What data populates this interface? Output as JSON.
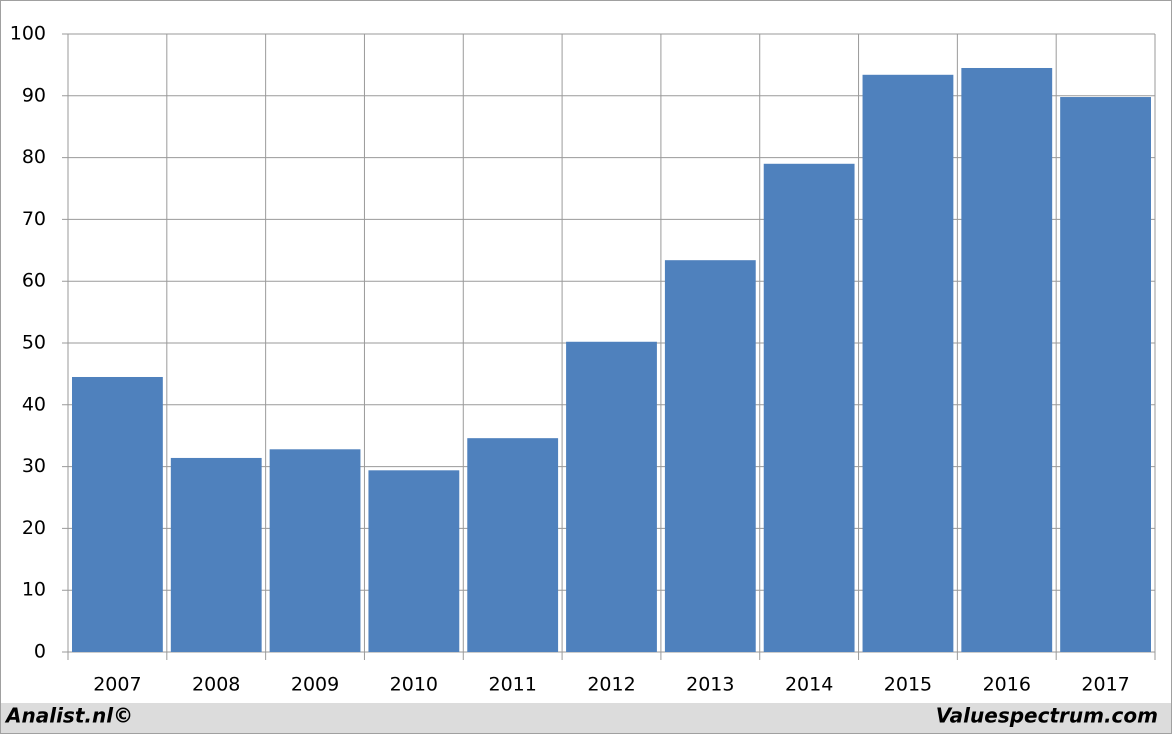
{
  "chart_data": {
    "type": "bar",
    "categories": [
      "2007",
      "2008",
      "2009",
      "2010",
      "2011",
      "2012",
      "2013",
      "2014",
      "2015",
      "2016",
      "2017"
    ],
    "values": [
      44.5,
      31.4,
      32.8,
      29.4,
      34.6,
      50.2,
      63.4,
      79.0,
      93.4,
      94.5,
      89.8
    ],
    "color": "#4f81bd",
    "ylim": [
      0,
      100
    ],
    "yticks": [
      0,
      10,
      20,
      30,
      40,
      50,
      60,
      70,
      80,
      90,
      100
    ],
    "grid": true,
    "footer": [
      "Analist.nl©",
      "Valuespectrum.com"
    ]
  }
}
